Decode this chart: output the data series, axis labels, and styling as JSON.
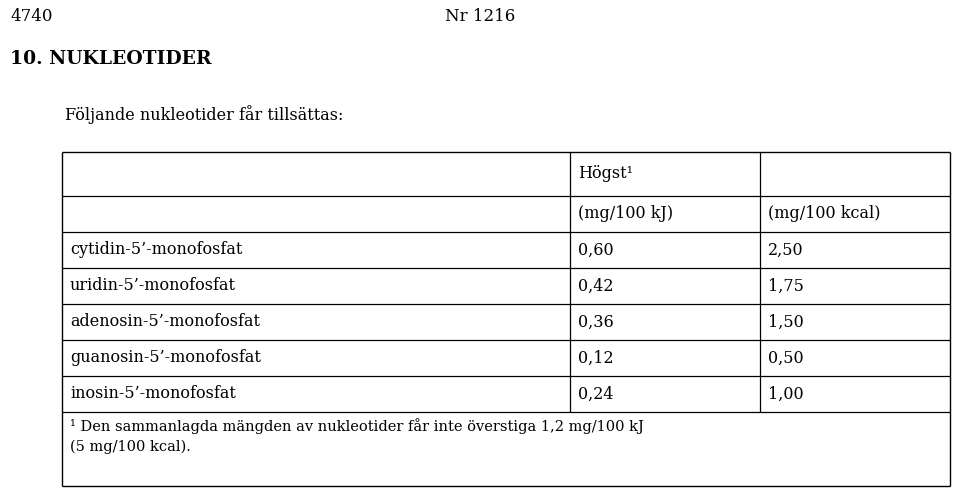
{
  "header_top_left": "4740",
  "header_top_center": "Nr 1216",
  "section_title": "10. NUKLEOTIDER",
  "intro_text": "Följande nukleotider får tillsättas:",
  "col_header_span": "Högst¹",
  "col_header1": "(mg/100 kJ)",
  "col_header2": "(mg/100 kcal)",
  "rows": [
    [
      "cytidin-5’-monofosfat",
      "0,60",
      "2,50"
    ],
    [
      "uridin-5’-monofosfat",
      "0,42",
      "1,75"
    ],
    [
      "adenosin-5’-monofosfat",
      "0,36",
      "1,50"
    ],
    [
      "guanosin-5’-monofosfat",
      "0,12",
      "0,50"
    ],
    [
      "inosin-5’-monofosfat",
      "0,24",
      "1,00"
    ]
  ],
  "footnote_line1": "¹ Den sammanlagda mängden av nukleotider får inte överstiga 1,2 mg/100 kJ",
  "footnote_line2": "(5 mg/100 kcal).",
  "bg_color": "#ffffff",
  "text_color": "#000000",
  "font_size_body": 11.5,
  "font_size_title": 13.5,
  "font_size_top": 12
}
